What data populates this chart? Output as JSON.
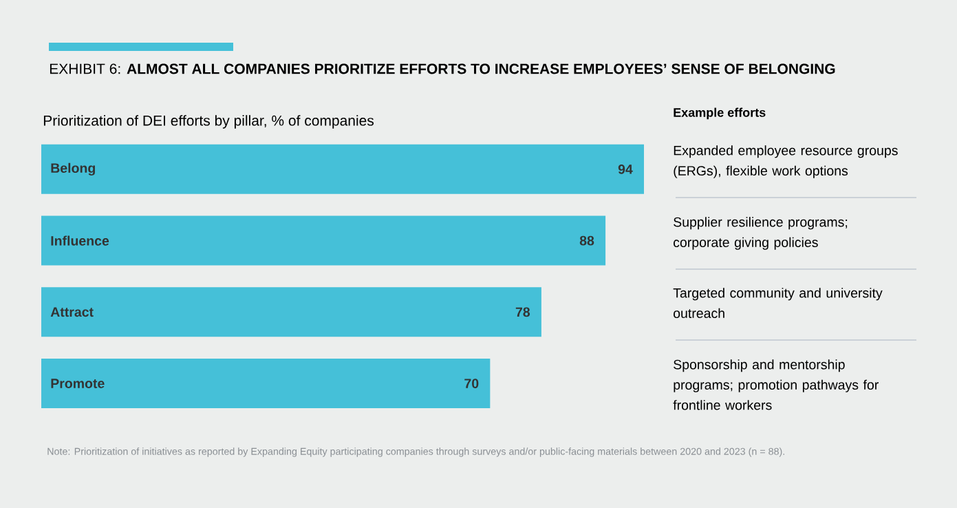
{
  "chart_data": {
    "type": "bar",
    "orientation": "horizontal",
    "title": "EXHIBIT 6: **ALMOST ALL COMPANIES PRIORITIZE EFFORTS TO INCREASE EMPLOYEES’ SENSE OF BELONGING**",
    "subtitle": "Prioritization of DEI efforts by pillar, % of companies",
    "categories": [
      "Belong",
      "Influence",
      "Attract",
      "Promote"
    ],
    "values": [
      94,
      88,
      78,
      70
    ],
    "color": "#45c0d8",
    "tick_labels": false,
    "data_labels": true,
    "annotations": [
      "Example efforts",
      "Expanded employee resource groups (ERGs), flexible work options",
      "Supplier resilience programs; corporate giving policies",
      "Targeted community and university outreach",
      "Sponsorship and mentorship programs; promotion pathways for frontline workers",
      "Note: Prioritization of initiatives as reported by Expanding Equity participating companies through surveys and/or public-facing materials between 2020 and 2023 (n = 88)."
    ]
  }
}
